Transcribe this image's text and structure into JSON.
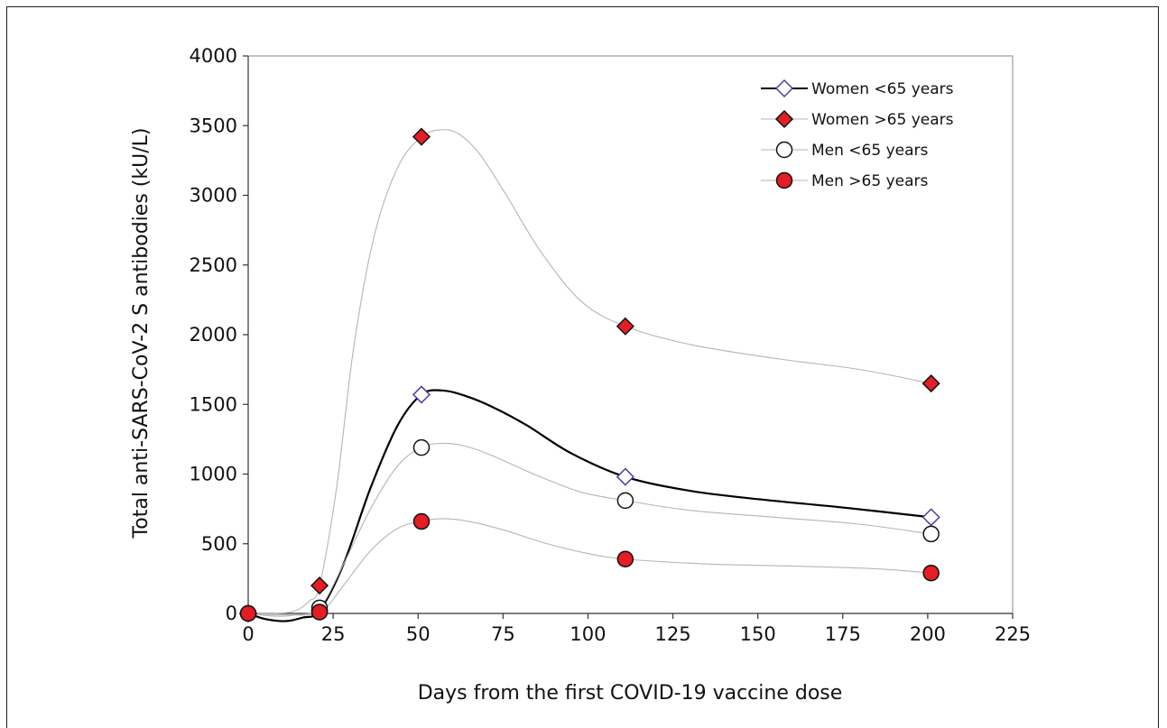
{
  "chart_data": {
    "type": "scatter",
    "xlabel": "Days from the first COVID-19 vaccine dose",
    "ylabel": "Total anti-SARS-CoV-2 S antibodies (kU/L)",
    "xlim": [
      0,
      225
    ],
    "ylim": [
      0,
      4000
    ],
    "x_ticks": [
      0,
      25,
      50,
      75,
      100,
      125,
      150,
      175,
      200,
      225
    ],
    "y_ticks": [
      0,
      500,
      1000,
      1500,
      2000,
      2500,
      3000,
      3500,
      4000
    ],
    "x_tick_labels": [
      "0",
      "25",
      "50",
      "75",
      "100",
      "125",
      "150",
      "175",
      "200",
      "225"
    ],
    "y_tick_labels": [
      "0",
      "500",
      "1000",
      "1500",
      "2000",
      "2500",
      "3000",
      "3500",
      "4000"
    ],
    "grid": false,
    "legend_position": "top-right",
    "series": [
      {
        "name": "Women <65 years",
        "marker": "diamond-open",
        "line_color": "#000000",
        "marker_color": "#4a3f9e",
        "x": [
          0,
          21,
          51,
          111,
          201
        ],
        "y": [
          0,
          20,
          1570,
          980,
          690
        ],
        "curve": [
          [
            0,
            0
          ],
          [
            5,
            -40
          ],
          [
            11,
            -55
          ],
          [
            16,
            -30
          ],
          [
            21,
            20
          ],
          [
            28,
            350
          ],
          [
            36,
            900
          ],
          [
            44,
            1350
          ],
          [
            51,
            1570
          ],
          [
            57,
            1600
          ],
          [
            64,
            1560
          ],
          [
            72,
            1480
          ],
          [
            82,
            1350
          ],
          [
            95,
            1150
          ],
          [
            111,
            980
          ],
          [
            130,
            880
          ],
          [
            150,
            820
          ],
          [
            175,
            760
          ],
          [
            201,
            690
          ]
        ]
      },
      {
        "name": "Women >65 years",
        "marker": "diamond-filled",
        "line_color": "#b5b5b5",
        "marker_color": "#e31e24",
        "x": [
          0,
          21,
          51,
          111,
          201
        ],
        "y": [
          0,
          200,
          3420,
          2060,
          1650
        ],
        "curve": [
          [
            0,
            0
          ],
          [
            8,
            0
          ],
          [
            14,
            20
          ],
          [
            18,
            90
          ],
          [
            21,
            200
          ],
          [
            26,
            900
          ],
          [
            31,
            1900
          ],
          [
            37,
            2700
          ],
          [
            44,
            3200
          ],
          [
            51,
            3420
          ],
          [
            57,
            3470
          ],
          [
            62,
            3440
          ],
          [
            68,
            3300
          ],
          [
            76,
            3000
          ],
          [
            86,
            2600
          ],
          [
            98,
            2240
          ],
          [
            111,
            2060
          ],
          [
            130,
            1930
          ],
          [
            155,
            1830
          ],
          [
            180,
            1750
          ],
          [
            201,
            1650
          ]
        ]
      },
      {
        "name": "Men <65 years",
        "marker": "circle-open",
        "line_color": "#b5b5b5",
        "marker_color": "#000000",
        "x": [
          0,
          21,
          51,
          111,
          201
        ],
        "y": [
          0,
          40,
          1190,
          810,
          570
        ],
        "curve": [
          [
            0,
            0
          ],
          [
            8,
            -20
          ],
          [
            14,
            -10
          ],
          [
            21,
            40
          ],
          [
            28,
            350
          ],
          [
            36,
            750
          ],
          [
            44,
            1060
          ],
          [
            51,
            1190
          ],
          [
            57,
            1220
          ],
          [
            64,
            1200
          ],
          [
            72,
            1130
          ],
          [
            85,
            990
          ],
          [
            98,
            870
          ],
          [
            111,
            810
          ],
          [
            130,
            740
          ],
          [
            155,
            690
          ],
          [
            180,
            640
          ],
          [
            201,
            570
          ]
        ]
      },
      {
        "name": "Men >65 years",
        "marker": "circle-filled",
        "line_color": "#b5b5b5",
        "marker_color": "#e31e24",
        "x": [
          0,
          21,
          51,
          111,
          201
        ],
        "y": [
          0,
          10,
          660,
          390,
          290
        ],
        "curve": [
          [
            0,
            0
          ],
          [
            10,
            -10
          ],
          [
            21,
            10
          ],
          [
            28,
            200
          ],
          [
            36,
            450
          ],
          [
            44,
            610
          ],
          [
            51,
            660
          ],
          [
            57,
            680
          ],
          [
            65,
            660
          ],
          [
            75,
            600
          ],
          [
            88,
            500
          ],
          [
            100,
            430
          ],
          [
            111,
            390
          ],
          [
            135,
            355
          ],
          [
            160,
            340
          ],
          [
            185,
            320
          ],
          [
            201,
            290
          ]
        ]
      }
    ]
  }
}
